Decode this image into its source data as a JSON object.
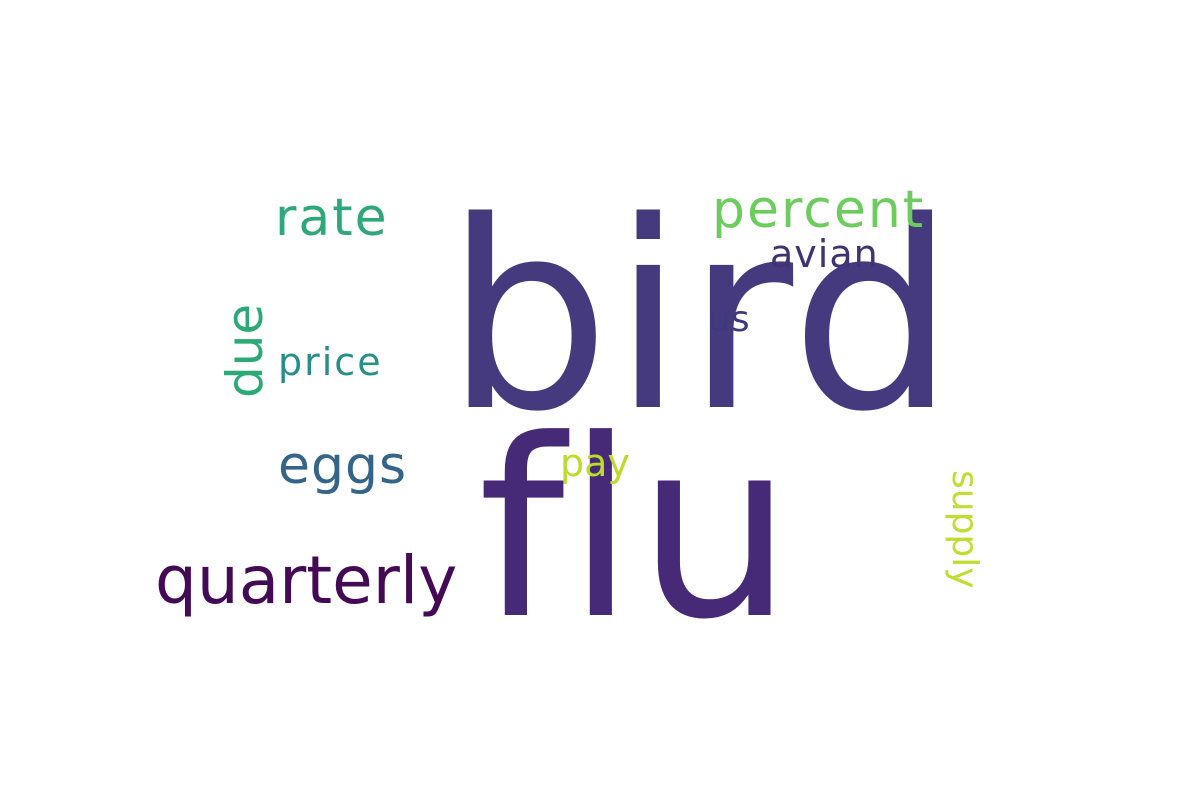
{
  "words": [
    {
      "text": "bird",
      "color": "#463a7f"
    },
    {
      "text": "flu",
      "color": "#472a77"
    },
    {
      "text": "quarterly",
      "color": "#440a55"
    },
    {
      "text": "rate",
      "color": "#2ea87a"
    },
    {
      "text": "percent",
      "color": "#6ccc5d"
    },
    {
      "text": "avian",
      "color": "#413272"
    },
    {
      "text": "us",
      "color": "#3d3a7c"
    },
    {
      "text": "due",
      "color": "#2ba977"
    },
    {
      "text": "price",
      "color": "#268f8a"
    },
    {
      "text": "eggs",
      "color": "#346589"
    },
    {
      "text": "pay",
      "color": "#bcdb2a"
    },
    {
      "text": "supply",
      "color": "#bede31"
    }
  ]
}
